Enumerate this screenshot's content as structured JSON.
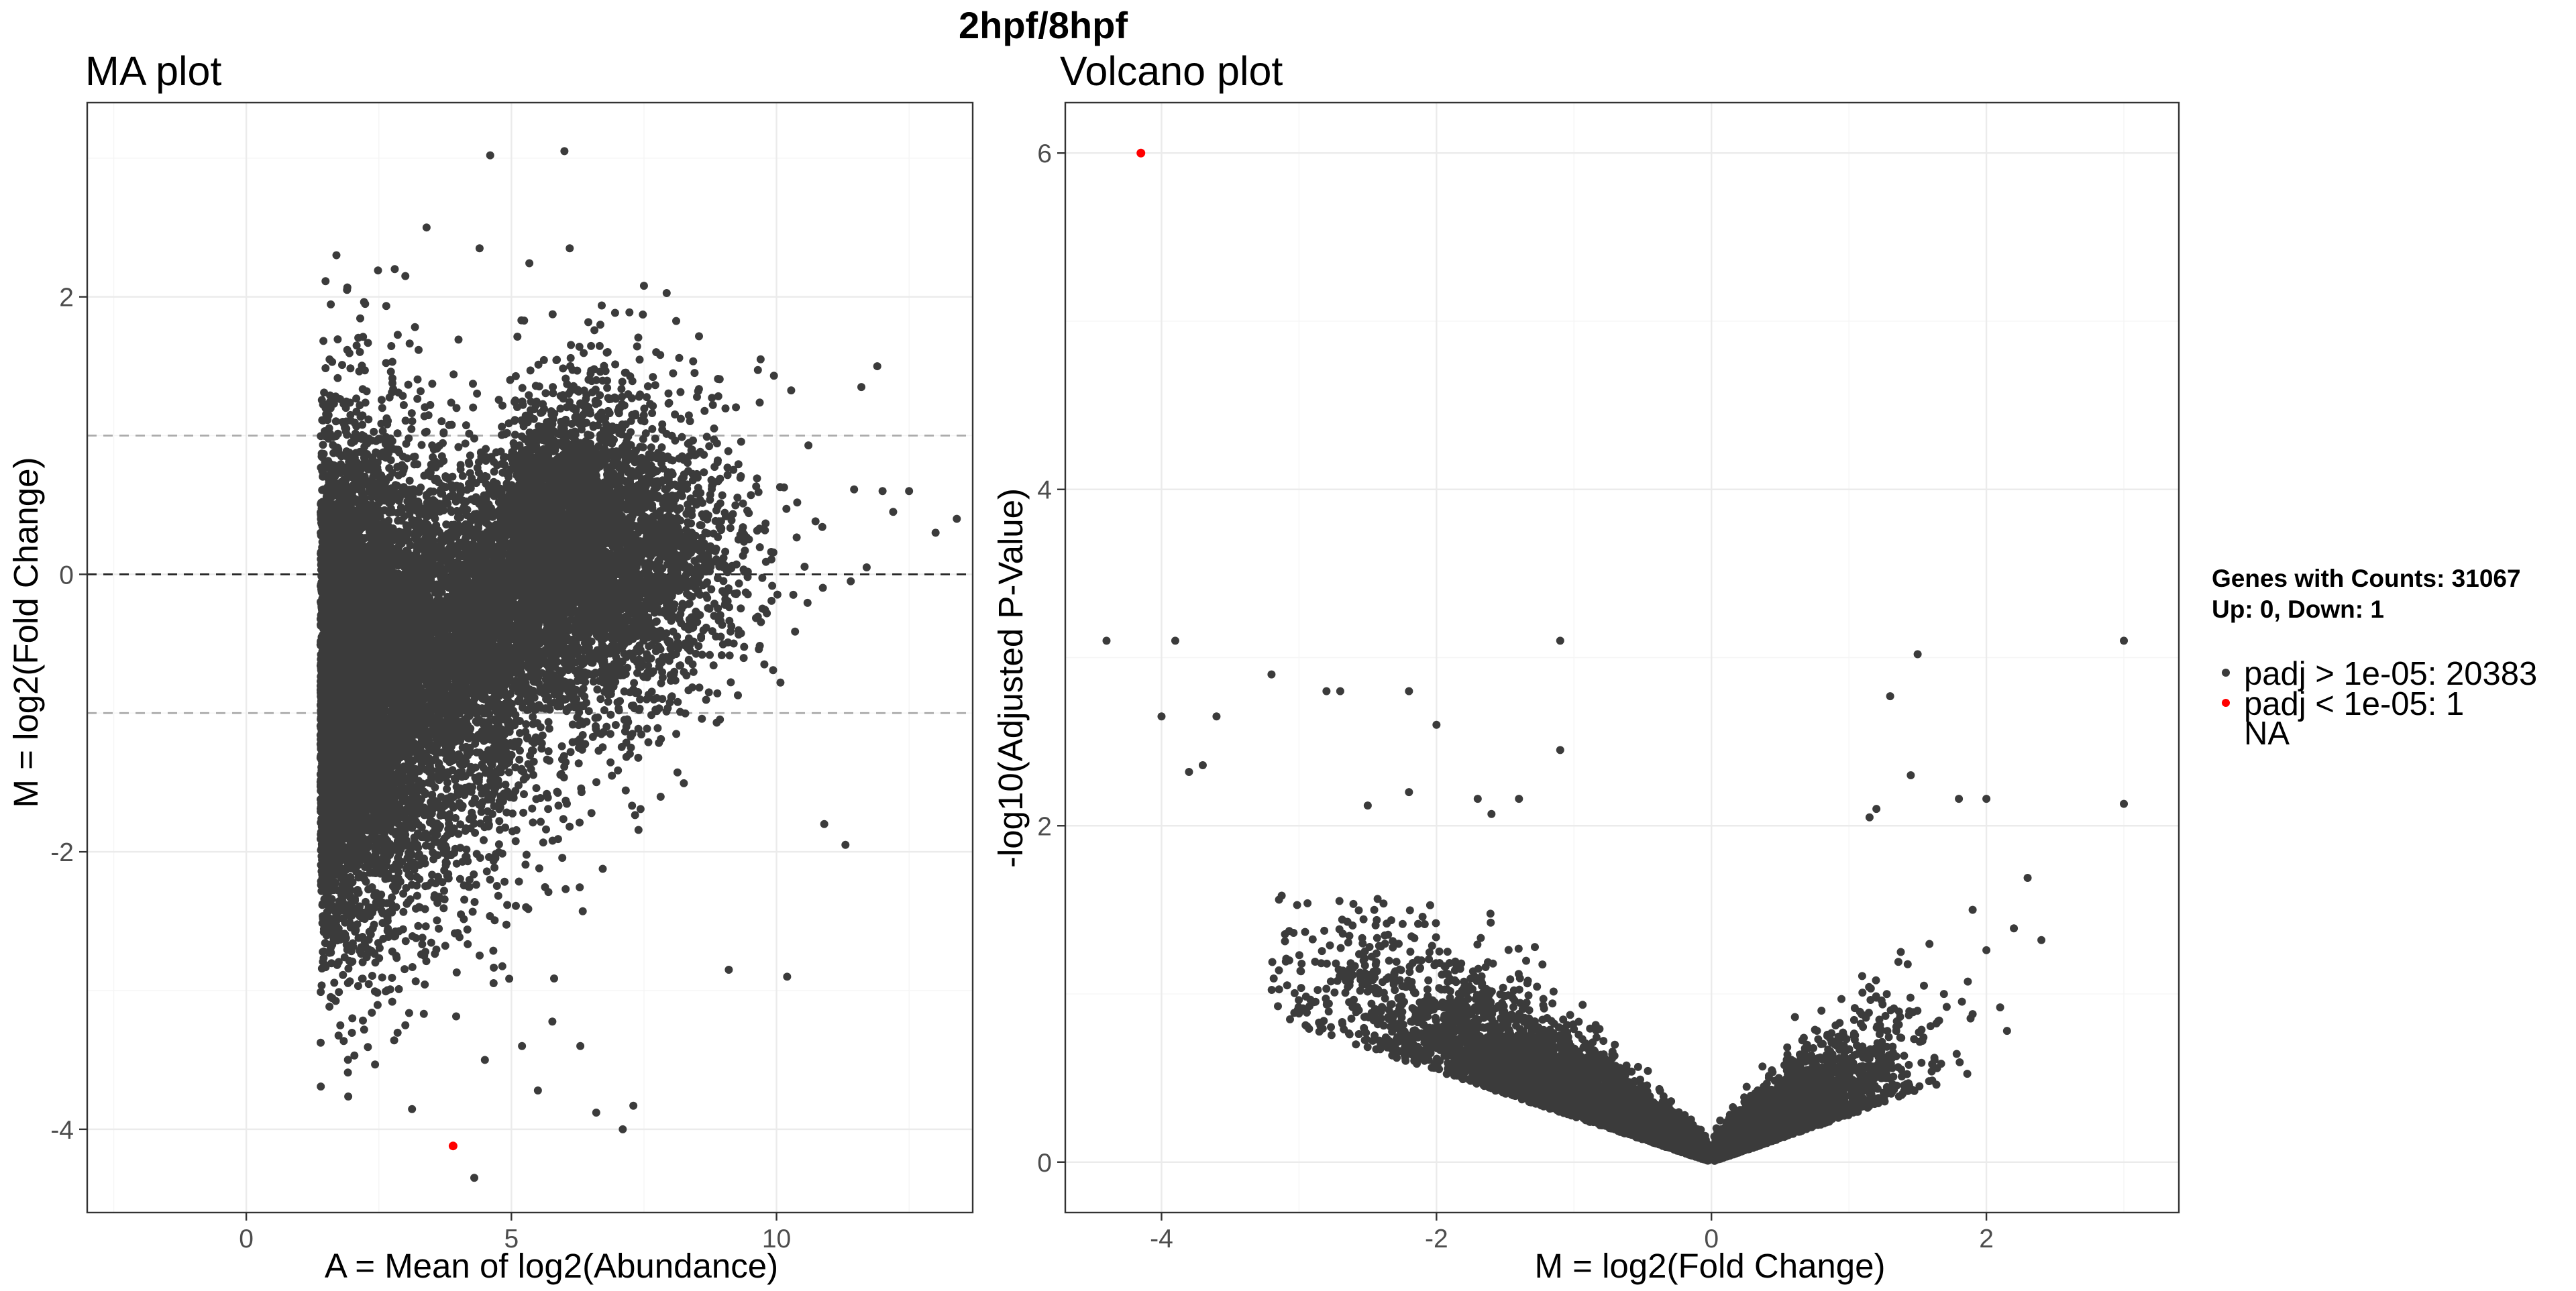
{
  "title": "2hpf/8hpf",
  "colors": {
    "points": "#3b3b3b",
    "highlight": "#ff0000",
    "threshold_line": "#ababab",
    "zero_line": "#222222"
  },
  "legend": {
    "title_lines": [
      "Genes with Counts: 31067",
      "Up: 0, Down: 1"
    ],
    "entries": [
      {
        "label": "padj > 1e-05: 20383",
        "color": "#3b3b3b",
        "marker": true
      },
      {
        "label": "padj < 1e-05: 1",
        "color": "#ff0000",
        "marker": true
      },
      {
        "label": "NA",
        "color": "",
        "marker": false
      }
    ]
  },
  "chart_data": [
    {
      "type": "scatter",
      "title": "MA plot",
      "xlabel": "A = Mean of log2(Abundance)",
      "ylabel": "M = log2(Fold Change)",
      "xlim": [
        -3,
        13.7
      ],
      "ylim": [
        -4.6,
        3.4
      ],
      "xticks": [
        0,
        5,
        10
      ],
      "xtick_labels": [
        "0",
        "5",
        "10"
      ],
      "yticks": [
        -4,
        -2,
        0,
        2
      ],
      "ytick_labels": [
        "-4",
        "-2",
        "0",
        "2"
      ],
      "grid": true,
      "hlines": [
        {
          "y": 1,
          "style": "dashed",
          "color": "#ababab"
        },
        {
          "y": 0,
          "style": "dashed",
          "color": "#222222"
        },
        {
          "y": -1,
          "style": "dashed",
          "color": "#ababab"
        }
      ],
      "series": [
        {
          "label": "padj > 1e-05",
          "color": "#3b3b3b",
          "count": 20383,
          "points": [
            [
              4.6,
              3.02
            ],
            [
              6.0,
              3.05
            ],
            [
              3.4,
              2.5
            ],
            [
              4.4,
              2.35
            ],
            [
              6.1,
              2.35
            ],
            [
              1.7,
              2.3
            ],
            [
              2.8,
              2.2
            ],
            [
              3.0,
              2.15
            ],
            [
              1.9,
              2.05
            ],
            [
              7.5,
              2.08
            ],
            [
              11.9,
              1.5
            ],
            [
              9.7,
              1.55
            ],
            [
              11.6,
              1.35
            ],
            [
              12.5,
              0.6
            ],
            [
              12.0,
              0.6
            ],
            [
              12.2,
              0.45
            ],
            [
              13.0,
              0.3
            ],
            [
              13.4,
              0.4
            ],
            [
              11.7,
              0.05
            ],
            [
              11.4,
              -0.05
            ],
            [
              10.9,
              -1.8
            ],
            [
              10.2,
              -2.9
            ],
            [
              11.3,
              -1.95
            ],
            [
              4.5,
              -3.5
            ],
            [
              5.2,
              -3.4
            ],
            [
              5.5,
              -3.72
            ],
            [
              6.6,
              -3.88
            ],
            [
              7.1,
              -4.0
            ],
            [
              7.3,
              -3.83
            ],
            [
              4.3,
              -4.35
            ],
            [
              6.3,
              -3.4
            ],
            [
              2.0,
              -3.2
            ],
            [
              1.6,
              -3.05
            ],
            [
              3.0,
              -3.25
            ],
            [
              9.1,
              -2.85
            ]
          ]
        },
        {
          "label": "padj < 1e-05",
          "color": "#ff0000",
          "count": 1,
          "points": [
            [
              3.9,
              -4.12
            ]
          ]
        }
      ]
    },
    {
      "type": "scatter",
      "title": "Volcano plot",
      "xlabel": "M = log2(Fold Change)",
      "ylabel": "-log10(Adjusted P-Value)",
      "xlim": [
        -4.7,
        3.4
      ],
      "ylim": [
        -0.3,
        6.3
      ],
      "xticks": [
        -4,
        -2,
        0,
        2
      ],
      "xtick_labels": [
        "-4",
        "-2",
        "0",
        "2"
      ],
      "yticks": [
        0,
        2,
        4,
        6
      ],
      "ytick_labels": [
        "0",
        "2",
        "4",
        "6"
      ],
      "grid": true,
      "series": [
        {
          "label": "padj > 1e-05",
          "color": "#3b3b3b",
          "count": 20383,
          "points": [
            [
              -4.4,
              3.1
            ],
            [
              -3.9,
              3.1
            ],
            [
              -1.1,
              3.1
            ],
            [
              3.0,
              3.1
            ],
            [
              1.5,
              3.02
            ],
            [
              -3.2,
              2.9
            ],
            [
              1.3,
              2.77
            ],
            [
              -2.8,
              2.8
            ],
            [
              -2.7,
              2.8
            ],
            [
              -2.2,
              2.8
            ],
            [
              -4.0,
              2.65
            ],
            [
              -3.6,
              2.65
            ],
            [
              1.45,
              2.3
            ],
            [
              -3.8,
              2.32
            ],
            [
              -3.7,
              2.36
            ],
            [
              -2.0,
              2.6
            ],
            [
              -1.1,
              2.45
            ],
            [
              -2.2,
              2.2
            ],
            [
              -1.4,
              2.16
            ],
            [
              -1.7,
              2.16
            ],
            [
              -2.5,
              2.12
            ],
            [
              -1.6,
              2.07
            ],
            [
              2.0,
              2.16
            ],
            [
              1.8,
              2.16
            ],
            [
              3.0,
              2.13
            ],
            [
              1.2,
              2.1
            ],
            [
              1.15,
              2.05
            ],
            [
              2.3,
              1.69
            ],
            [
              2.4,
              1.32
            ],
            [
              2.2,
              1.39
            ],
            [
              1.9,
              1.5
            ],
            [
              2.0,
              1.26
            ],
            [
              2.15,
              0.78
            ],
            [
              2.1,
              0.92
            ],
            [
              1.9,
              0.88
            ]
          ]
        },
        {
          "label": "padj < 1e-05",
          "color": "#ff0000",
          "count": 1,
          "points": [
            [
              -4.15,
              6.0
            ]
          ]
        }
      ]
    }
  ]
}
